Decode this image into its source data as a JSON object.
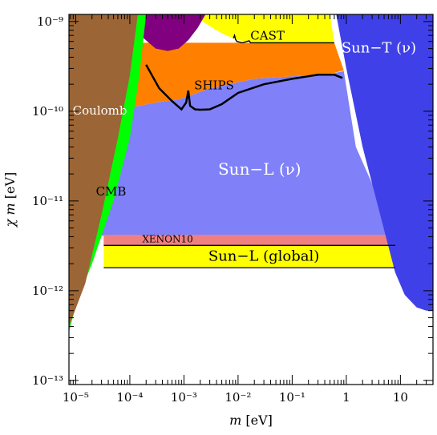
{
  "chart_data": {
    "type": "area",
    "xlabel_var": "m",
    "xlabel_unit": "[eV]",
    "ylabel_var": "χ m",
    "ylabel_unit": "[eV]",
    "x_scale": "log",
    "y_scale": "log",
    "xlim": [
      7.5e-06,
      40
    ],
    "ylim": [
      9e-14,
      1.2e-09
    ],
    "x_ticks": [
      {
        "value": 1e-05,
        "label": "10⁻⁵"
      },
      {
        "value": 0.0001,
        "label": "10⁻⁴"
      },
      {
        "value": 0.001,
        "label": "10⁻³"
      },
      {
        "value": 0.01,
        "label": "10⁻²"
      },
      {
        "value": 0.1,
        "label": "10⁻¹"
      },
      {
        "value": 1,
        "label": "1"
      },
      {
        "value": 10,
        "label": "10"
      }
    ],
    "y_ticks": [
      {
        "value": 1e-13,
        "label": "10⁻¹³"
      },
      {
        "value": 1e-12,
        "label": "10⁻¹²"
      },
      {
        "value": 1e-11,
        "label": "10⁻¹¹"
      },
      {
        "value": 1e-10,
        "label": "10⁻¹⁰"
      },
      {
        "value": 1e-09,
        "label": "10⁻⁹"
      }
    ],
    "regions": [
      {
        "name": "Sun−L (ν)",
        "color": "#8080f8",
        "label_at": [
          0.025,
          2.2e-11
        ],
        "label_size": 20,
        "label_color": "#ffffff",
        "boundary": [
          [
            1.82e-05,
            1.02e-10
          ],
          [
            5.5e-05,
            1.02e-10
          ],
          [
            0.0003,
            1.25e-10
          ],
          [
            0.0008,
            1.35e-10
          ],
          [
            0.003,
            1.8e-10
          ],
          [
            0.02,
            2.3e-10
          ],
          [
            0.1,
            2.45e-10
          ],
          [
            0.5,
            2.6e-10
          ],
          [
            0.9,
            2.8e-10
          ],
          [
            1.5,
            4e-11
          ],
          [
            8,
            4.1e-12
          ],
          [
            8,
            3.2e-12
          ],
          [
            3.3e-05,
            3.2e-12
          ],
          [
            3.3e-05,
            4.1e-12
          ],
          [
            1.82e-05,
            4.1e-12
          ]
        ]
      },
      {
        "name": "SHIPS",
        "color": "#ff8000",
        "label_at": [
          0.0036,
          1.9e-10
        ],
        "label_size": 15,
        "label_color": "#000000",
        "boundary": [
          [
            1.82e-05,
            3.8e-10
          ],
          [
            3e-05,
            4.6e-10
          ],
          [
            6e-05,
            5.8e-10
          ],
          [
            0.00012,
            5.8e-10
          ],
          [
            0.2,
            5.8e-10
          ],
          [
            0.6,
            5.8e-10
          ],
          [
            0.9,
            2.85e-10
          ],
          [
            0.5,
            2.6e-10
          ],
          [
            0.1,
            2.45e-10
          ],
          [
            0.02,
            2.3e-10
          ],
          [
            0.003,
            1.8e-10
          ],
          [
            0.0008,
            1.35e-10
          ],
          [
            0.0003,
            1.25e-10
          ],
          [
            5.5e-05,
            1.02e-10
          ],
          [
            1.82e-05,
            1.02e-10
          ]
        ]
      },
      {
        "name": "CAST",
        "color": "#ffff00",
        "label_at": [
          0.035,
          6.8e-10
        ],
        "label_size": 15,
        "label_color": "#000000",
        "boundary": [
          [
            0.0003,
            1.2e-09
          ],
          [
            0.5,
            1.2e-09
          ],
          [
            0.6,
            5.8e-10
          ],
          [
            0.2,
            5.8e-10
          ],
          [
            0.03,
            5.8e-10
          ],
          [
            0.017,
            5.9e-10
          ],
          [
            0.01,
            6.2e-10
          ],
          [
            0.006,
            7e-10
          ],
          [
            0.004,
            8e-10
          ],
          [
            0.0025,
            9.5e-10
          ],
          [
            0.0015,
            1.2e-09
          ]
        ]
      },
      {
        "name": "",
        "color": "#800080",
        "boundary": [
          [
            9.5e-05,
            1.2e-09
          ],
          [
            0.0025,
            1.2e-09
          ],
          [
            0.0018,
            8.5e-10
          ],
          [
            0.0012,
            6.2e-10
          ],
          [
            0.0008,
            5e-10
          ],
          [
            0.0005,
            4.7e-10
          ],
          [
            0.0003,
            5e-10
          ],
          [
            0.00018,
            6.5e-10
          ],
          [
            0.00012,
            9e-10
          ]
        ]
      },
      {
        "name": "XENON10",
        "color": "#f08080",
        "label_at": [
          0.0005,
          3.7e-12
        ],
        "label_size": 12,
        "label_color": "#000000",
        "boundary": [
          [
            3.3e-05,
            4.2e-12
          ],
          [
            8,
            4.2e-12
          ],
          [
            8,
            3.2e-12
          ],
          [
            3.3e-05,
            3.2e-12
          ]
        ]
      },
      {
        "name": "Sun−L (global)",
        "color": "#ffff00",
        "label_at": [
          0.03,
          2.4e-12
        ],
        "label_size": 18,
        "label_color": "#000000",
        "boundary": [
          [
            3.3e-05,
            3.2e-12
          ],
          [
            8,
            3.2e-12
          ],
          [
            8,
            1.8e-12
          ],
          [
            3.3e-05,
            1.8e-12
          ]
        ]
      },
      {
        "name": "Sun−T (ν)",
        "color": "#4040e8",
        "label_at": [
          4,
          5e-10
        ],
        "label_size": 18,
        "label_color": "#ffffff",
        "boundary": [
          [
            0.65,
            1.2e-09
          ],
          [
            40,
            1.2e-09
          ],
          [
            40,
            6e-13
          ],
          [
            30,
            6e-13
          ],
          [
            20,
            6.5e-13
          ],
          [
            12,
            9e-13
          ],
          [
            8,
            1.6e-12
          ],
          [
            4,
            8e-12
          ],
          [
            2,
            4e-11
          ],
          [
            1,
            3e-10
          ]
        ]
      },
      {
        "name": "CMB",
        "color": "#00ff00",
        "label_at": [
          4.5e-05,
          1.25e-11
        ],
        "label_size": 15,
        "label_color": "#000000",
        "boundary": [
          [
            7.5e-06,
            4e-13
          ],
          [
            1e-05,
            7e-13
          ],
          [
            2e-05,
            2e-12
          ],
          [
            5e-05,
            1e-11
          ],
          [
            0.0001,
            5e-11
          ],
          [
            0.00015,
            2.5e-10
          ],
          [
            0.0002,
            1.2e-09
          ],
          [
            0.00013,
            1.2e-09
          ],
          [
            9e-05,
            2.5e-10
          ],
          [
            5e-05,
            5e-11
          ],
          [
            2.5e-05,
            7e-12
          ],
          [
            1.3e-05,
            1.2e-12
          ],
          [
            7.5e-06,
            3.5e-13
          ]
        ]
      },
      {
        "name": "Coulomb",
        "color": "#9b6535",
        "label_at": [
          2.8e-05,
          1e-10
        ],
        "label_size": 15,
        "label_color": "#ffffff",
        "boundary": [
          [
            7.5e-06,
            1.2e-09
          ],
          [
            0.00014,
            1.2e-09
          ],
          [
            0.0001,
            2.5e-10
          ],
          [
            6e-05,
            5e-11
          ],
          [
            3e-05,
            7e-12
          ],
          [
            1.5e-05,
            1.2e-12
          ],
          [
            7.5e-06,
            4e-13
          ]
        ]
      }
    ],
    "curves": [
      {
        "name": "SHIPS-limit",
        "color": "#000000",
        "points": [
          [
            0.0002,
            3.3e-10
          ],
          [
            0.00035,
            1.8e-10
          ],
          [
            0.0006,
            1.3e-10
          ],
          [
            0.0009,
            1.05e-10
          ],
          [
            0.0011,
            1.25e-10
          ],
          [
            0.0012,
            1.7e-10
          ],
          [
            0.0013,
            1.15e-10
          ],
          [
            0.0016,
            1.05e-10
          ],
          [
            0.002,
            1.04e-10
          ],
          [
            0.003,
            1.05e-10
          ],
          [
            0.005,
            1.2e-10
          ],
          [
            0.01,
            1.6e-10
          ],
          [
            0.03,
            2e-10
          ],
          [
            0.1,
            2.3e-10
          ],
          [
            0.3,
            2.55e-10
          ],
          [
            0.6,
            2.55e-10
          ],
          [
            0.85,
            2.35e-10
          ]
        ]
      },
      {
        "name": "CAST-limit",
        "color": "#000000",
        "points": [
          [
            0.0082,
            6.5e-10
          ],
          [
            0.0086,
            7e-10
          ],
          [
            0.009,
            6.3e-10
          ],
          [
            0.0095,
            6e-10
          ],
          [
            0.012,
            5.8e-10
          ],
          [
            0.016,
            6.1e-10
          ],
          [
            0.017,
            5.8e-10
          ],
          [
            0.6,
            5.8e-10
          ]
        ]
      }
    ]
  }
}
